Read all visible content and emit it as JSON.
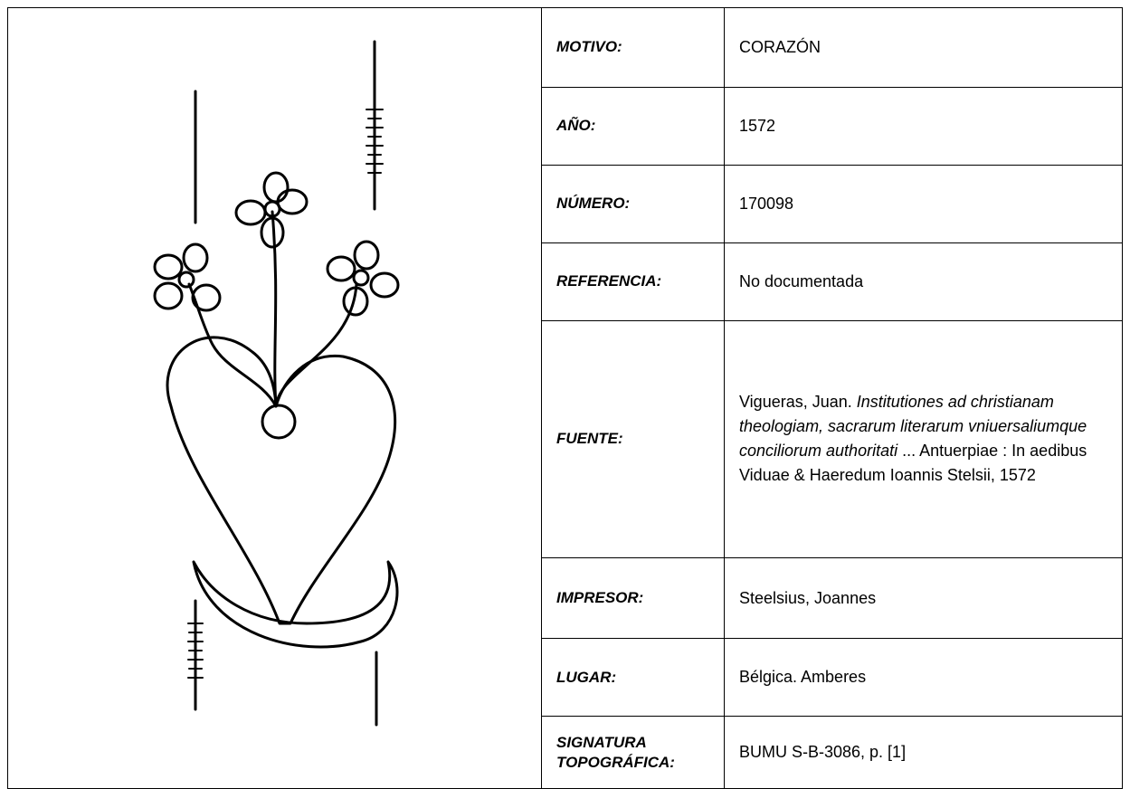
{
  "rows": [
    {
      "label": "MOTIVO:",
      "value": "CORAZÓN"
    },
    {
      "label": "AÑO:",
      "value": "1572"
    },
    {
      "label": "NÚMERO:",
      "value": "170098"
    },
    {
      "label": "REFERENCIA:",
      "value": "No documentada"
    },
    {
      "label": "FUENTE:",
      "value_parts": [
        {
          "text": "Vigueras, Juan. ",
          "italic": false
        },
        {
          "text": "Institutiones ad christianam theologiam, sacrarum literarum vniuersaliumque conciliorum authoritati",
          "italic": true
        },
        {
          "text": " ... Antuerpiae : In aedibus Viduae & Haeredum Ioannis Stelsii, 1572",
          "italic": false
        }
      ]
    },
    {
      "label": "IMPRESOR:",
      "value": "Steelsius, Joannes"
    },
    {
      "label": "LUGAR:",
      "value": "Bélgica. Amberes"
    },
    {
      "label": "SIGNATURA TOPOGRÁFICA:",
      "value": "BUMU S-B-3086, p. [1]"
    }
  ]
}
